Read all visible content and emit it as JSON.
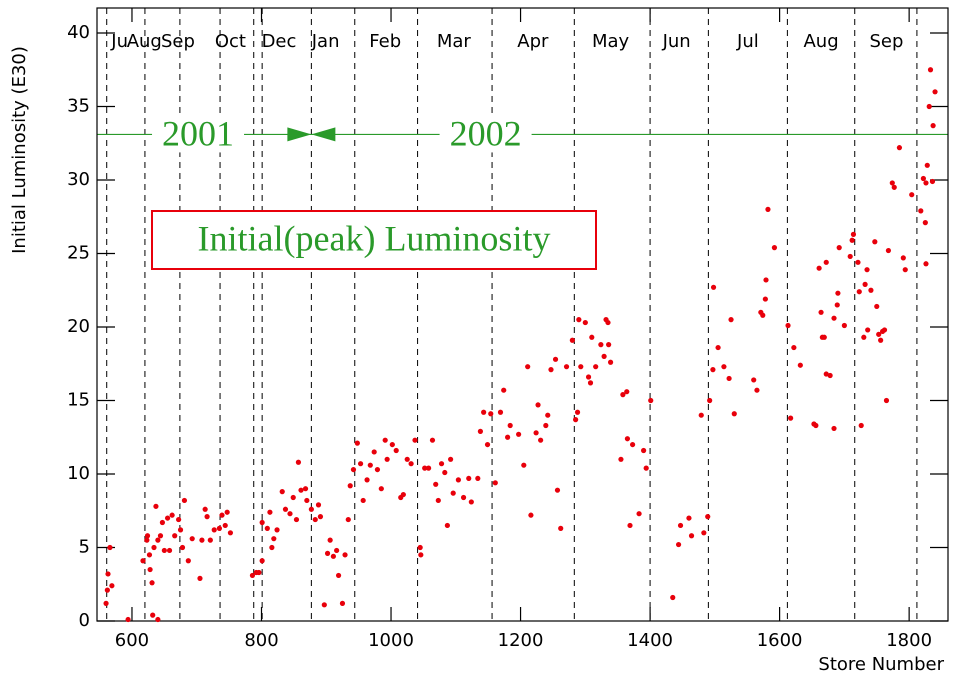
{
  "chart_data": {
    "type": "scatter",
    "title": "Initial(peak) Luminosity",
    "x_label": "Store Number",
    "y_label": "Initial Luminosity (E30)",
    "color": "#e8000b",
    "xlim": [
      546,
      1860
    ],
    "ylim": [
      0,
      41.7
    ],
    "xticks": [
      600,
      800,
      1000,
      1200,
      1400,
      1600,
      1800
    ],
    "yticks": [
      0,
      5,
      10,
      15,
      20,
      25,
      30,
      35,
      40
    ],
    "month_lines": [
      561,
      620,
      674,
      736,
      788,
      801,
      877,
      944,
      1041,
      1156,
      1283,
      1400,
      1490,
      1612,
      1716,
      1812
    ],
    "month_labels": [
      {
        "text": "Ju",
        "x": 581
      },
      {
        "text": "Aug",
        "x": 619
      },
      {
        "text": "Sep",
        "x": 671
      },
      {
        "text": "Oct",
        "x": 752
      },
      {
        "text": "Dec",
        "x": 827
      },
      {
        "text": "Jan",
        "x": 899
      },
      {
        "text": "Feb",
        "x": 991
      },
      {
        "text": "Mar",
        "x": 1097
      },
      {
        "text": "Apr",
        "x": 1219
      },
      {
        "text": "May",
        "x": 1339
      },
      {
        "text": "Jun",
        "x": 1441
      },
      {
        "text": "Jul",
        "x": 1551
      },
      {
        "text": "Aug",
        "x": 1664
      },
      {
        "text": "Sep",
        "x": 1765
      }
    ],
    "year_line_y": 33.1,
    "year_boundary": 877,
    "year_labels": [
      {
        "text": "2001",
        "x": 702
      },
      {
        "text": "2002",
        "x": 1146
      }
    ],
    "x": [
      560,
      562,
      563,
      566,
      569,
      594,
      617,
      623,
      624,
      627,
      628,
      631,
      632,
      634,
      637,
      640,
      640,
      644,
      647,
      650,
      655,
      658,
      662,
      666,
      672,
      675,
      678,
      681,
      687,
      693,
      705,
      708,
      713,
      716,
      721,
      727,
      735,
      739,
      744,
      747,
      752,
      786,
      792,
      796,
      801,
      801,
      809,
      813,
      816,
      819,
      824,
      832,
      837,
      844,
      849,
      854,
      857,
      861,
      868,
      870,
      877,
      883,
      888,
      891,
      897,
      902,
      906,
      911,
      916,
      919,
      925,
      929,
      934,
      937,
      942,
      948,
      953,
      957,
      963,
      968,
      974,
      979,
      985,
      991,
      994,
      1002,
      1008,
      1015,
      1019,
      1025,
      1031,
      1037,
      1045,
      1046,
      1052,
      1058,
      1064,
      1069,
      1073,
      1078,
      1083,
      1087,
      1092,
      1096,
      1104,
      1112,
      1120,
      1124,
      1134,
      1138,
      1143,
      1149,
      1154,
      1161,
      1169,
      1174,
      1180,
      1184,
      1197,
      1205,
      1211,
      1216,
      1224,
      1227,
      1231,
      1239,
      1242,
      1247,
      1254,
      1257,
      1262,
      1271,
      1280,
      1285,
      1288,
      1290,
      1293,
      1300,
      1305,
      1308,
      1310,
      1316,
      1324,
      1329,
      1332,
      1335,
      1336,
      1339,
      1355,
      1358,
      1364,
      1365,
      1369,
      1373,
      1383,
      1390,
      1394,
      1401,
      1435,
      1444,
      1447,
      1460,
      1464,
      1479,
      1483,
      1489,
      1492,
      1497,
      1498,
      1505,
      1514,
      1522,
      1525,
      1530,
      1560,
      1565,
      1571,
      1574,
      1578,
      1579,
      1582,
      1592,
      1613,
      1617,
      1622,
      1632,
      1653,
      1656,
      1661,
      1664,
      1666,
      1669,
      1672,
      1672,
      1678,
      1684,
      1684,
      1689,
      1690,
      1692,
      1700,
      1709,
      1712,
      1714,
      1721,
      1723,
      1726,
      1730,
      1732,
      1735,
      1736,
      1741,
      1747,
      1750,
      1753,
      1756,
      1759,
      1762,
      1765,
      1768,
      1774,
      1777,
      1785,
      1791,
      1794,
      1804,
      1818,
      1822,
      1825,
      1826,
      1826,
      1828,
      1831,
      1833,
      1836,
      1837,
      1840
    ],
    "values": [
      1.2,
      2.1,
      3.2,
      5.0,
      2.4,
      0.1,
      4.1,
      5.5,
      5.8,
      4.5,
      3.5,
      2.6,
      0.4,
      5.0,
      7.8,
      0.1,
      5.5,
      5.8,
      6.7,
      4.8,
      7.0,
      4.8,
      7.2,
      5.8,
      6.9,
      6.2,
      5.0,
      8.2,
      4.1,
      5.6,
      2.9,
      5.5,
      7.6,
      7.1,
      5.5,
      6.2,
      6.3,
      7.2,
      6.5,
      7.4,
      6.0,
      3.1,
      3.3,
      3.3,
      4.1,
      6.7,
      6.3,
      7.4,
      5.0,
      5.6,
      6.2,
      8.8,
      7.6,
      7.3,
      8.4,
      6.9,
      10.8,
      8.9,
      9.0,
      8.2,
      7.6,
      6.9,
      7.9,
      7.1,
      1.1,
      4.6,
      5.5,
      4.4,
      4.8,
      3.1,
      1.2,
      4.5,
      6.9,
      9.2,
      10.3,
      12.1,
      10.7,
      8.2,
      9.6,
      10.6,
      11.5,
      10.3,
      9.0,
      12.3,
      11.0,
      12.0,
      11.6,
      8.4,
      8.6,
      11.0,
      10.7,
      12.3,
      5.0,
      4.5,
      10.4,
      10.4,
      12.3,
      9.3,
      8.2,
      10.7,
      10.1,
      6.5,
      11.0,
      8.7,
      9.6,
      8.4,
      9.7,
      8.1,
      9.7,
      12.9,
      14.2,
      12.0,
      14.1,
      9.4,
      14.2,
      15.7,
      12.5,
      13.3,
      12.7,
      10.6,
      17.3,
      7.2,
      12.8,
      14.7,
      12.3,
      13.3,
      14.0,
      17.1,
      17.8,
      8.9,
      6.3,
      17.3,
      19.1,
      13.7,
      14.2,
      20.5,
      17.3,
      20.3,
      16.6,
      16.2,
      19.3,
      17.3,
      18.8,
      18.0,
      20.5,
      20.3,
      18.8,
      17.6,
      11.0,
      15.4,
      15.6,
      12.4,
      6.5,
      12.0,
      7.3,
      11.6,
      10.4,
      15.0,
      1.6,
      5.2,
      6.5,
      7.0,
      5.8,
      14.0,
      6.0,
      7.1,
      15.0,
      17.1,
      22.7,
      18.6,
      17.3,
      16.5,
      20.5,
      14.1,
      16.4,
      15.7,
      21.0,
      20.8,
      21.9,
      23.2,
      28.0,
      25.4,
      20.1,
      13.8,
      18.6,
      17.4,
      13.4,
      13.3,
      24.0,
      21.0,
      19.3,
      19.3,
      24.4,
      16.8,
      16.7,
      20.6,
      13.1,
      21.5,
      22.3,
      25.4,
      20.1,
      24.8,
      25.9,
      26.3,
      24.4,
      22.4,
      13.3,
      19.3,
      22.9,
      23.9,
      19.8,
      22.5,
      25.8,
      21.4,
      19.5,
      19.1,
      19.7,
      19.8,
      15.0,
      25.2,
      29.8,
      29.5,
      32.2,
      24.7,
      23.9,
      29.0,
      27.9,
      30.1,
      27.1,
      29.8,
      24.3,
      31.0,
      35.0,
      37.5,
      29.9,
      33.7,
      36.0
    ]
  }
}
